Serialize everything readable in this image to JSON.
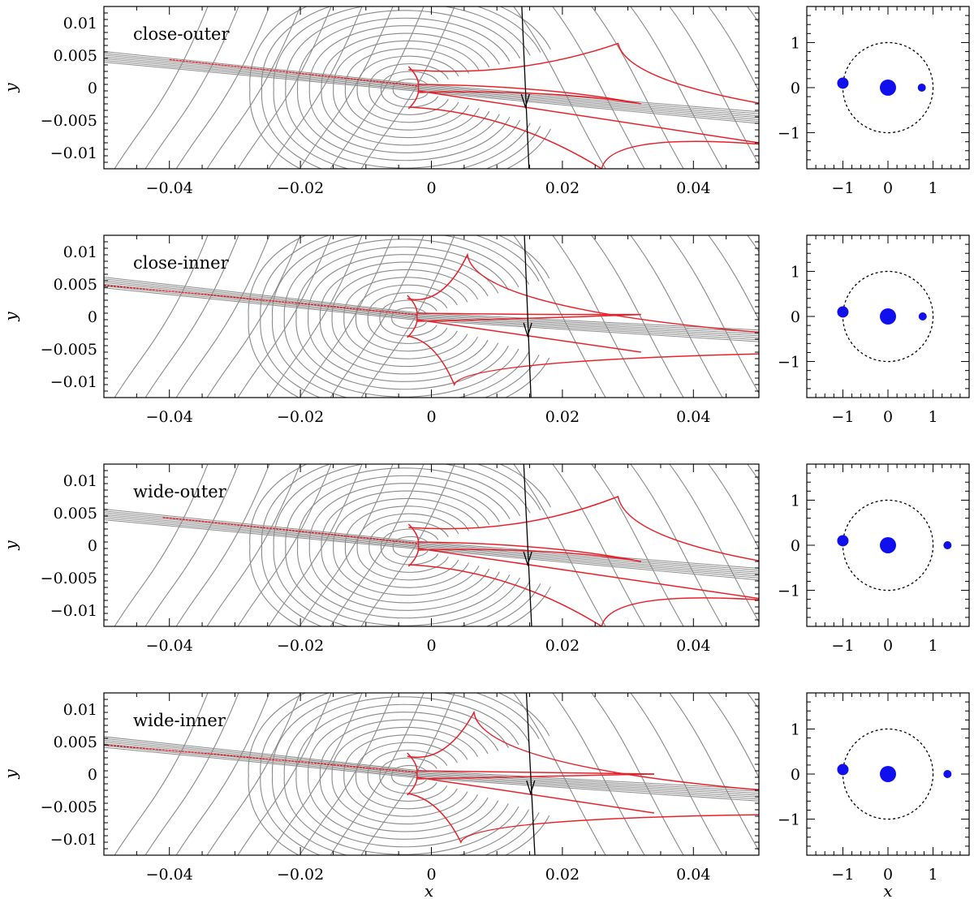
{
  "chart_data": [
    {
      "type": "line",
      "panel": "caustic",
      "label": "close-outer",
      "xlabel": "",
      "ylabel": "y",
      "xlim": [
        -0.05,
        0.05
      ],
      "ylim": [
        -0.0125,
        0.0125
      ],
      "xticks": [
        -0.04,
        -0.02,
        0,
        0.02,
        0.04
      ],
      "xtick_labels": [
        "−0.04",
        "−0.02",
        "0",
        "0.02",
        "0.04"
      ],
      "yticks": [
        0.01,
        0.005,
        0,
        -0.005,
        -0.01
      ],
      "ytick_labels": [
        "0.01",
        "0.005",
        "0",
        "−0.005",
        "−0.01"
      ],
      "central_caustic": {
        "cusp_left": [
          -0.002,
          0.0
        ],
        "cusp_right": [
          0.032,
          -0.0025
        ],
        "cusp_top": [
          0.0285,
          0.0068
        ],
        "cusp_bottom": [
          0.026,
          -0.0125
        ]
      },
      "caustic_arm": {
        "from": [
          -0.04,
          0.0043
        ],
        "to": [
          0.05,
          -0.0085
        ]
      },
      "source_trajectory": {
        "x_top": 0.0138,
        "x_bottom": 0.0149
      }
    },
    {
      "type": "line",
      "panel": "caustic",
      "label": "close-inner",
      "xlabel": "",
      "ylabel": "y",
      "xlim": [
        -0.05,
        0.05
      ],
      "ylim": [
        -0.0125,
        0.0125
      ],
      "xticks": [
        -0.04,
        -0.02,
        0,
        0.02,
        0.04
      ],
      "xtick_labels": [
        "−0.04",
        "−0.02",
        "0",
        "0.02",
        "0.04"
      ],
      "yticks": [
        0.01,
        0.005,
        0,
        -0.005,
        -0.01
      ],
      "ytick_labels": [
        "0.01",
        "0.005",
        "0",
        "−0.005",
        "−0.01"
      ],
      "central_caustic": {
        "cusp_left": [
          -0.0022,
          0.0
        ],
        "cusp_right": [
          0.032,
          0.0003
        ],
        "cusp_top": [
          0.0055,
          0.0095
        ],
        "cusp_bottom": [
          0.0035,
          -0.0105
        ]
      },
      "caustic_arm": {
        "from": [
          -0.05,
          0.0048
        ],
        "to": [
          0.032,
          -0.0055
        ]
      },
      "source_trajectory": {
        "x_top": 0.0142,
        "x_bottom": 0.0152
      }
    },
    {
      "type": "line",
      "panel": "caustic",
      "label": "wide-outer",
      "xlabel": "",
      "ylabel": "y",
      "xlim": [
        -0.05,
        0.05
      ],
      "ylim": [
        -0.0125,
        0.0125
      ],
      "xticks": [
        -0.04,
        -0.02,
        0,
        0.02,
        0.04
      ],
      "xtick_labels": [
        "−0.04",
        "−0.02",
        "0",
        "0.02",
        "0.04"
      ],
      "yticks": [
        0.01,
        0.005,
        0,
        -0.005,
        -0.01
      ],
      "ytick_labels": [
        "0.01",
        "0.005",
        "0",
        "−0.005",
        "−0.01"
      ],
      "central_caustic": {
        "cusp_left": [
          -0.002,
          0.0
        ],
        "cusp_right": [
          0.032,
          -0.0025
        ],
        "cusp_top": [
          0.0285,
          0.0075
        ],
        "cusp_bottom": [
          0.026,
          -0.0125
        ]
      },
      "caustic_arm": {
        "from": [
          -0.041,
          0.0043
        ],
        "to": [
          0.05,
          -0.0082
        ]
      },
      "source_trajectory": {
        "x_top": 0.0141,
        "x_bottom": 0.0153
      }
    },
    {
      "type": "line",
      "panel": "caustic",
      "label": "wide-inner",
      "xlabel": "x",
      "ylabel": "y",
      "xlim": [
        -0.05,
        0.05
      ],
      "ylim": [
        -0.0125,
        0.0125
      ],
      "xticks": [
        -0.04,
        -0.02,
        0,
        0.02,
        0.04
      ],
      "xtick_labels": [
        "−0.04",
        "−0.02",
        "0",
        "0.02",
        "0.04"
      ],
      "yticks": [
        0.01,
        0.005,
        0,
        -0.005,
        -0.01
      ],
      "ytick_labels": [
        "0.01",
        "0.005",
        "0",
        "−0.005",
        "−0.01"
      ],
      "central_caustic": {
        "cusp_left": [
          -0.0022,
          0.0
        ],
        "cusp_right": [
          0.034,
          0.0
        ],
        "cusp_top": [
          0.0065,
          0.0095
        ],
        "cusp_bottom": [
          0.0045,
          -0.0105
        ]
      },
      "caustic_arm": {
        "from": [
          -0.05,
          0.0045
        ],
        "to": [
          0.034,
          -0.006
        ]
      },
      "source_trajectory": {
        "x_top": 0.0145,
        "x_bottom": 0.0158
      }
    },
    {
      "type": "scatter",
      "panel": "geometry",
      "label": "close-outer",
      "xlabel": "",
      "ylabel": "",
      "xlim": [
        -1.8,
        1.8
      ],
      "ylim": [
        -1.8,
        1.8
      ],
      "ticks": [
        -1,
        0,
        1
      ],
      "tick_labels": [
        "−1",
        "0",
        "1"
      ],
      "einstein_ring_radius": 1.0,
      "bodies": [
        {
          "role": "host",
          "x": 0.0,
          "y": 0.0,
          "size": "large"
        },
        {
          "role": "planet-1",
          "x": -1.0,
          "y": 0.1,
          "size": "medium"
        },
        {
          "role": "planet-2",
          "x": 0.75,
          "y": 0.0,
          "size": "small"
        }
      ]
    },
    {
      "type": "scatter",
      "panel": "geometry",
      "label": "close-inner",
      "xlabel": "",
      "ylabel": "",
      "xlim": [
        -1.8,
        1.8
      ],
      "ylim": [
        -1.8,
        1.8
      ],
      "ticks": [
        -1,
        0,
        1
      ],
      "tick_labels": [
        "−1",
        "0",
        "1"
      ],
      "einstein_ring_radius": 1.0,
      "bodies": [
        {
          "role": "host",
          "x": 0.0,
          "y": 0.0,
          "size": "large"
        },
        {
          "role": "planet-1",
          "x": -1.0,
          "y": 0.1,
          "size": "medium"
        },
        {
          "role": "planet-2",
          "x": 0.77,
          "y": 0.0,
          "size": "small"
        }
      ]
    },
    {
      "type": "scatter",
      "panel": "geometry",
      "label": "wide-outer",
      "xlabel": "",
      "ylabel": "",
      "xlim": [
        -1.8,
        1.8
      ],
      "ylim": [
        -1.8,
        1.8
      ],
      "ticks": [
        -1,
        0,
        1
      ],
      "tick_labels": [
        "−1",
        "0",
        "1"
      ],
      "einstein_ring_radius": 1.0,
      "bodies": [
        {
          "role": "host",
          "x": 0.0,
          "y": 0.0,
          "size": "large"
        },
        {
          "role": "planet-1",
          "x": -1.0,
          "y": 0.1,
          "size": "medium"
        },
        {
          "role": "planet-2",
          "x": 1.32,
          "y": 0.0,
          "size": "small"
        }
      ]
    },
    {
      "type": "scatter",
      "panel": "geometry",
      "label": "wide-inner",
      "xlabel": "x",
      "ylabel": "",
      "xlim": [
        -1.8,
        1.8
      ],
      "ylim": [
        -1.8,
        1.8
      ],
      "ticks": [
        -1,
        0,
        1
      ],
      "tick_labels": [
        "−1",
        "0",
        "1"
      ],
      "einstein_ring_radius": 1.0,
      "bodies": [
        {
          "role": "host",
          "x": 0.0,
          "y": 0.0,
          "size": "large"
        },
        {
          "role": "planet-1",
          "x": -1.0,
          "y": 0.1,
          "size": "medium"
        },
        {
          "role": "planet-2",
          "x": 1.32,
          "y": 0.0,
          "size": "small"
        }
      ]
    }
  ],
  "colors": {
    "caustic": "#e8202a",
    "contour": "#8a8a8a",
    "trajectory": "#000000",
    "bodies": "#1010ee",
    "ring": "#000000"
  }
}
